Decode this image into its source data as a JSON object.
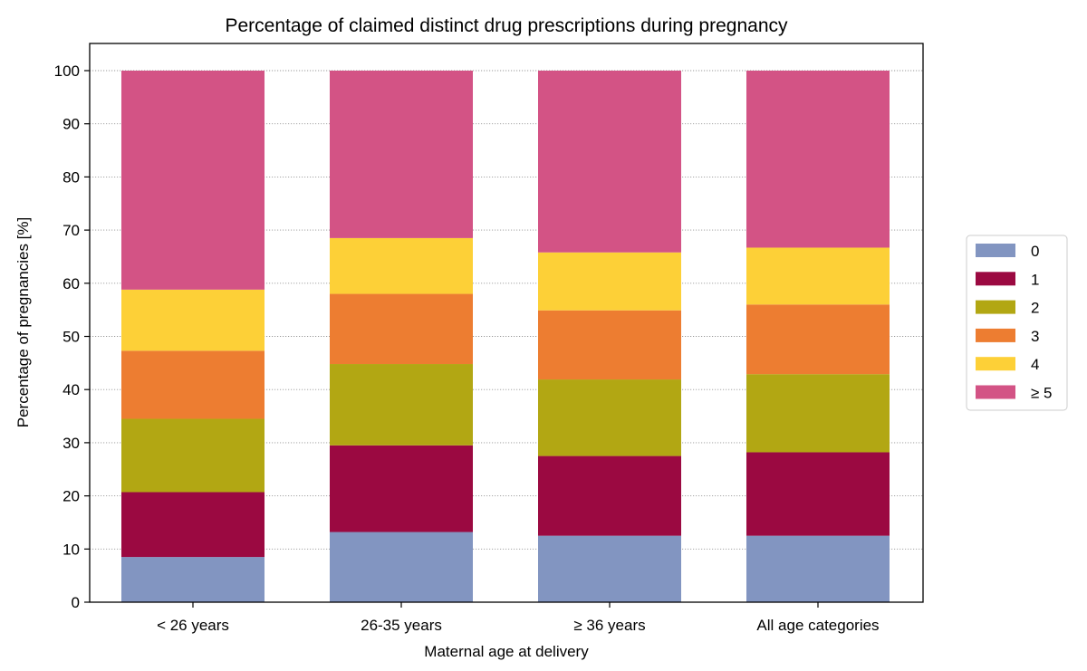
{
  "chart_data": {
    "type": "bar",
    "stacked": true,
    "title": "Percentage of claimed distinct drug prescriptions during pregnancy",
    "xlabel": "Maternal age at delivery",
    "ylabel": "Percentage of pregnancies [%]",
    "ylim": [
      0,
      100
    ],
    "yticks": [
      0,
      10,
      20,
      30,
      40,
      50,
      60,
      70,
      80,
      90,
      100
    ],
    "grid": "y-dotted",
    "legend_position": "right",
    "categories": [
      "< 26 years",
      "26-35 years",
      "≥ 36 years",
      "All age categories"
    ],
    "series": [
      {
        "name": "0",
        "color": "#8295c1",
        "values": [
          8.5,
          13.2,
          12.5,
          12.5
        ]
      },
      {
        "name": "1",
        "color": "#9b0941",
        "values": [
          12.2,
          16.3,
          15.0,
          15.7
        ]
      },
      {
        "name": "2",
        "color": "#b2a713",
        "values": [
          13.8,
          15.3,
          14.4,
          14.7
        ]
      },
      {
        "name": "3",
        "color": "#ed7d31",
        "values": [
          12.8,
          13.2,
          13.0,
          13.1
        ]
      },
      {
        "name": "4",
        "color": "#fdd037",
        "values": [
          11.5,
          10.5,
          10.9,
          10.7
        ]
      },
      {
        "name": "≥ 5",
        "color": "#d35385",
        "values": [
          41.2,
          31.5,
          34.2,
          33.3
        ]
      }
    ]
  }
}
